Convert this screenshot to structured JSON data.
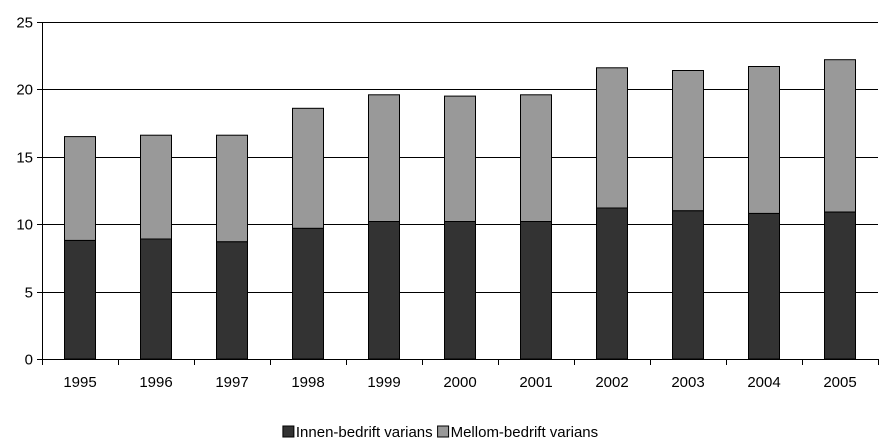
{
  "chart_data": {
    "type": "bar",
    "stacked": true,
    "categories": [
      "1995",
      "1996",
      "1997",
      "1998",
      "1999",
      "2000",
      "2001",
      "2002",
      "2003",
      "2004",
      "2005"
    ],
    "series": [
      {
        "name": "Innen-bedrift varians",
        "color": "#333333",
        "values": [
          8.8,
          8.9,
          8.7,
          9.7,
          10.2,
          10.2,
          10.2,
          11.2,
          11.0,
          10.8,
          10.9
        ]
      },
      {
        "name": "Mellom-bedrift varians",
        "color": "#999999",
        "values": [
          7.7,
          7.7,
          7.9,
          8.9,
          9.4,
          9.3,
          9.4,
          10.4,
          10.4,
          10.9,
          11.3
        ]
      }
    ],
    "yticks": [
      "0",
      "5",
      "10",
      "15",
      "20",
      "25"
    ],
    "ylim": [
      0,
      25
    ],
    "title": "",
    "xlabel": "",
    "ylabel": "",
    "grid": "horizontal",
    "legend_position": "bottom"
  }
}
